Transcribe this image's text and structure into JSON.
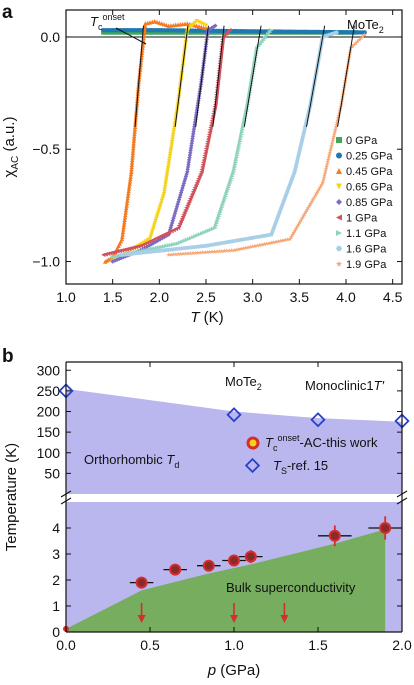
{
  "chart_data": [
    {
      "panel_label": "a",
      "type": "scatter",
      "annotation_material": "MoTe",
      "annotation_material_sub": "2",
      "annotation_tc_main": "T",
      "annotation_tc_sub": "c",
      "annotation_tc_sup": "onset",
      "xlabel_main": "T",
      "xlabel_unit": " (K)",
      "ylabel_main": "χ",
      "ylabel_sub": "AC",
      "ylabel_unit": " (a.u.)",
      "xlim": [
        1.0,
        4.6
      ],
      "ylim": [
        -1.1,
        0.12
      ],
      "xticks": [
        "1.0",
        "1.5",
        "2.0",
        "2.5",
        "3.0",
        "3.5",
        "4.0",
        "4.5"
      ],
      "yticks": [
        "0.0",
        "−0.5",
        "−1.0"
      ],
      "series": [
        {
          "name": "0 GPa",
          "color": "#3fa75a",
          "marker": "square",
          "points": [
            [
              1.4,
              0.02
            ],
            [
              2.0,
              0.02
            ],
            [
              3.0,
              0.02
            ],
            [
              4.1,
              0.02
            ]
          ]
        },
        {
          "name": "0.25 GPa",
          "color": "#1f78b4",
          "marker": "circle",
          "points": [
            [
              1.4,
              0.03
            ],
            [
              2.0,
              0.03
            ],
            [
              3.0,
              0.025
            ],
            [
              4.2,
              0.02
            ]
          ]
        },
        {
          "name": "0.45 GPa",
          "color": "#f47a20",
          "marker": "triangle-up",
          "points": [
            [
              1.42,
              -1.0
            ],
            [
              1.5,
              -0.98
            ],
            [
              1.6,
              -0.9
            ],
            [
              1.7,
              -0.6
            ],
            [
              1.78,
              -0.2
            ],
            [
              1.85,
              0.06
            ],
            [
              1.95,
              0.07
            ],
            [
              2.1,
              0.05
            ],
            [
              2.3,
              0.06
            ],
            [
              2.5,
              0.04
            ]
          ]
        },
        {
          "name": "0.65 GPa",
          "color": "#f5d31a",
          "marker": "triangle-down",
          "points": [
            [
              1.5,
              -1.0
            ],
            [
              1.7,
              -0.95
            ],
            [
              1.9,
              -0.9
            ],
            [
              2.05,
              -0.7
            ],
            [
              2.2,
              -0.3
            ],
            [
              2.3,
              0.03
            ],
            [
              2.4,
              0.07
            ],
            [
              2.5,
              0.05
            ]
          ]
        },
        {
          "name": "0.85 GPa",
          "color": "#7a6cc3",
          "marker": "diamond",
          "points": [
            [
              1.5,
              -1.0
            ],
            [
              1.8,
              -0.95
            ],
            [
              2.1,
              -0.88
            ],
            [
              2.3,
              -0.6
            ],
            [
              2.45,
              -0.2
            ],
            [
              2.52,
              0.03
            ],
            [
              2.6,
              0.05
            ]
          ]
        },
        {
          "name": "1 GPa",
          "color": "#d2505a",
          "marker": "triangle-left",
          "points": [
            [
              1.4,
              -0.97
            ],
            [
              1.8,
              -0.93
            ],
            [
              2.2,
              -0.85
            ],
            [
              2.45,
              -0.6
            ],
            [
              2.6,
              -0.3
            ],
            [
              2.68,
              0.0
            ],
            [
              2.75,
              0.03
            ]
          ]
        },
        {
          "name": "1.1 GPa",
          "color": "#8fd3be",
          "marker": "triangle-right",
          "points": [
            [
              1.5,
              -0.98
            ],
            [
              2.2,
              -0.92
            ],
            [
              2.6,
              -0.85
            ],
            [
              2.8,
              -0.6
            ],
            [
              2.95,
              -0.3
            ],
            [
              3.05,
              -0.05
            ],
            [
              3.2,
              0.03
            ]
          ]
        },
        {
          "name": "1.6 GPa",
          "color": "#a9cfe8",
          "marker": "hexagon",
          "points": [
            [
              1.6,
              -0.97
            ],
            [
              2.5,
              -0.93
            ],
            [
              3.2,
              -0.88
            ],
            [
              3.45,
              -0.6
            ],
            [
              3.62,
              -0.3
            ],
            [
              3.75,
              0.0
            ],
            [
              3.9,
              0.02
            ]
          ]
        },
        {
          "name": "1.9 GPa",
          "color": "#f5a573",
          "marker": "star",
          "points": [
            [
              2.1,
              -0.97
            ],
            [
              2.8,
              -0.95
            ],
            [
              3.4,
              -0.9
            ],
            [
              3.75,
              -0.65
            ],
            [
              3.95,
              -0.3
            ],
            [
              4.05,
              -0.05
            ],
            [
              4.2,
              0.01
            ]
          ]
        }
      ],
      "legend_position": "lower-right"
    },
    {
      "panel_label": "b",
      "type": "scatter",
      "annotation_material": "MoTe",
      "annotation_material_sub": "2",
      "annotation_mono": "Monoclinic1",
      "annotation_mono_sym": "T′",
      "annotation_ortho": "Orthorhombic ",
      "annotation_ortho_sym": "T",
      "annotation_ortho_sub": "d",
      "annotation_bulk": "Bulk superconductivity",
      "xlabel_main": "p",
      "xlabel_unit": " (GPa)",
      "ylabel": "Temperature (K)",
      "xlim": [
        0.0,
        2.0
      ],
      "xticks": [
        "0.0",
        "0.5",
        "1.0",
        "1.5",
        "2.0"
      ],
      "ylim_upper": [
        0,
        320
      ],
      "yticks_upper": [
        "50",
        "100",
        "150",
        "200",
        "250",
        "300"
      ],
      "ylim_lower": [
        0,
        5
      ],
      "yticks_lower": [
        "0",
        "1",
        "2",
        "3",
        "4"
      ],
      "legend_tc_main": "T",
      "legend_tc_sub": "c",
      "legend_tc_sup": "onset",
      "legend_tc_rest": "-AC-this work",
      "legend_ts_main": "T",
      "legend_ts_sub": "S",
      "legend_ts_rest": "-ref. 15",
      "tc_points": [
        {
          "p": 0.45,
          "t": 1.9,
          "xerr": 0.07,
          "yerr": 0.12
        },
        {
          "p": 0.65,
          "t": 2.4,
          "xerr": 0.07,
          "yerr": 0.1
        },
        {
          "p": 0.85,
          "t": 2.55,
          "xerr": 0.07,
          "yerr": 0.1
        },
        {
          "p": 1.0,
          "t": 2.75,
          "xerr": 0.07,
          "yerr": 0.15
        },
        {
          "p": 1.1,
          "t": 2.9,
          "xerr": 0.07,
          "yerr": 0.25
        },
        {
          "p": 1.6,
          "t": 3.7,
          "xerr": 0.1,
          "yerr": 0.4
        },
        {
          "p": 1.9,
          "t": 4.0,
          "xerr": 0.1,
          "yerr": 0.45
        }
      ],
      "ts_points": [
        {
          "p": 0.0,
          "t": 250
        },
        {
          "p": 1.0,
          "t": 192
        },
        {
          "p": 1.5,
          "t": 180
        },
        {
          "p": 2.0,
          "t": 177
        }
      ],
      "td_boundary": [
        [
          0.0,
          255
        ],
        [
          1.0,
          200
        ],
        [
          1.5,
          184
        ],
        [
          2.0,
          175
        ]
      ],
      "sc_boundary": [
        [
          0.0,
          0.12
        ],
        [
          0.45,
          1.6
        ],
        [
          0.85,
          2.25
        ],
        [
          1.1,
          2.6
        ],
        [
          1.6,
          3.4
        ],
        [
          1.9,
          3.95
        ]
      ],
      "arrows_p": [
        0.45,
        1.0,
        1.3
      ],
      "colors": {
        "td_fill": "#b9b7ee",
        "sc_fill": "#77ad5f",
        "tc_marker": "#d62d2d",
        "ts_marker": "#2a41c4"
      }
    }
  ]
}
